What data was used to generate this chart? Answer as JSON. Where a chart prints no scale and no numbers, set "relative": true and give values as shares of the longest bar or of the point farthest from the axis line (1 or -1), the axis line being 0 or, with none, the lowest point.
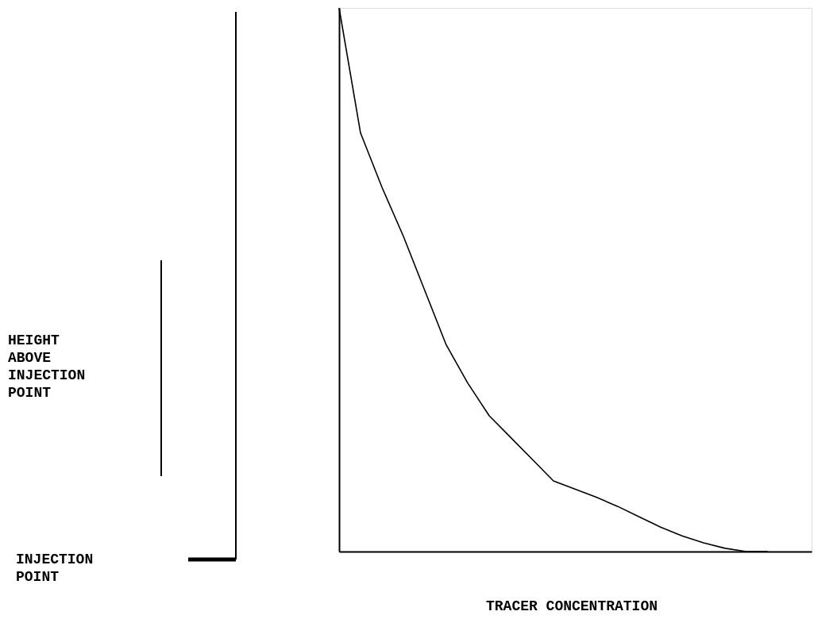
{
  "chart_data": {
    "type": "line",
    "relative": true,
    "xlabel": "TRACER CONCENTRATION",
    "annotations": [
      "HEIGHT ABOVE INJECTION POINT",
      "INJECTION POINT"
    ],
    "categories": [
      null,
      null,
      null,
      null,
      null,
      null,
      null,
      null,
      null,
      null,
      null,
      null,
      null,
      null,
      null,
      null,
      null,
      null,
      null,
      null,
      null
    ],
    "series": [
      {
        "color": "#000000",
        "values": [
          1.0,
          0.77,
          0.67,
          0.58,
          0.48,
          0.38,
          0.31,
          0.25,
          0.21,
          0.17,
          0.13,
          0.115,
          0.1,
          0.083,
          0.064,
          0.045,
          0.029,
          0.016,
          0.006,
          0.0,
          0.0
        ]
      }
    ],
    "grid": false,
    "marker": "none"
  }
}
